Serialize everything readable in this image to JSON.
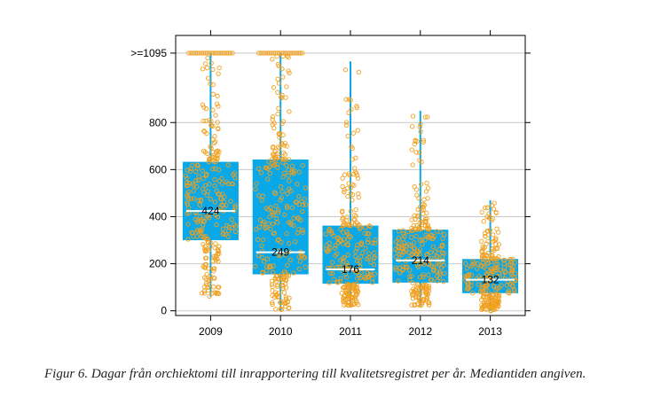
{
  "chart_data": {
    "type": "boxplot",
    "categories": [
      "2009",
      "2010",
      "2011",
      "2012",
      "2013"
    ],
    "y_ticks": [
      {
        "value": 0,
        "label": "0"
      },
      {
        "value": 200,
        "label": "200"
      },
      {
        "value": 400,
        "label": "400"
      },
      {
        "value": 600,
        "label": "600"
      },
      {
        "value": 800,
        "label": "800"
      },
      {
        "value": 1095,
        "label": ">=1095"
      }
    ],
    "ylim": [
      -20,
      1170
    ],
    "grid": true,
    "boxes": [
      {
        "year": "2009",
        "q1": 300,
        "median": 424,
        "q3": 633,
        "min": 60,
        "max": 1095,
        "median_label": "424"
      },
      {
        "year": "2010",
        "q1": 155,
        "median": 249,
        "q3": 643,
        "min": 0,
        "max": 1095,
        "median_label": "249"
      },
      {
        "year": "2011",
        "q1": 115,
        "median": 176,
        "q3": 362,
        "min": 20,
        "max": 1060,
        "median_label": "176"
      },
      {
        "year": "2012",
        "q1": 120,
        "median": 214,
        "q3": 345,
        "min": 20,
        "max": 850,
        "median_label": "214"
      },
      {
        "year": "2013",
        "q1": 75,
        "median": 132,
        "q3": 220,
        "min": 0,
        "max": 470,
        "median_label": "132"
      }
    ],
    "colors": {
      "box": "#0aa8e6",
      "points": "#f0a020",
      "median": "#ffffff",
      "grid": "#c8c8c8",
      "axis": "#000000"
    }
  },
  "caption": "Figur 6. Dagar från orchiektomi till inrapportering till kvalitetsregistret per år. Mediantiden angiven."
}
